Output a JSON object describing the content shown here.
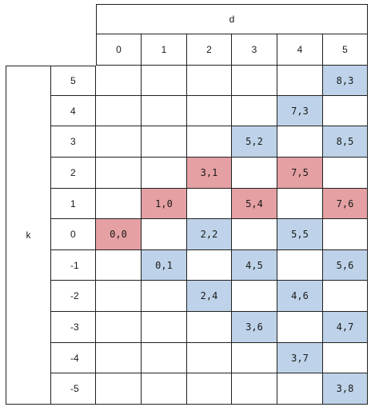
{
  "header": {
    "d_label": "d",
    "k_label": "k"
  },
  "d_values": [
    "0",
    "1",
    "2",
    "3",
    "4",
    "5"
  ],
  "k_values": [
    "5",
    "4",
    "3",
    "2",
    "1",
    "0",
    "-1",
    "-2",
    "-3",
    "-4",
    "-5"
  ],
  "colors": {
    "border": "#222222",
    "red": "#e5a0a3",
    "blue": "#bed3e9"
  },
  "cells": [
    {
      "k": "5",
      "d": "5",
      "text": "8,3",
      "color": "blue"
    },
    {
      "k": "4",
      "d": "4",
      "text": "7,3",
      "color": "blue"
    },
    {
      "k": "3",
      "d": "3",
      "text": "5,2",
      "color": "blue"
    },
    {
      "k": "3",
      "d": "5",
      "text": "8,5",
      "color": "blue"
    },
    {
      "k": "2",
      "d": "2",
      "text": "3,1",
      "color": "red"
    },
    {
      "k": "2",
      "d": "4",
      "text": "7,5",
      "color": "red"
    },
    {
      "k": "1",
      "d": "1",
      "text": "1,0",
      "color": "red"
    },
    {
      "k": "1",
      "d": "3",
      "text": "5,4",
      "color": "red"
    },
    {
      "k": "1",
      "d": "5",
      "text": "7,6",
      "color": "red"
    },
    {
      "k": "0",
      "d": "0",
      "text": "0,0",
      "color": "red"
    },
    {
      "k": "0",
      "d": "2",
      "text": "2,2",
      "color": "blue"
    },
    {
      "k": "0",
      "d": "4",
      "text": "5,5",
      "color": "blue"
    },
    {
      "k": "-1",
      "d": "1",
      "text": "0,1",
      "color": "blue"
    },
    {
      "k": "-1",
      "d": "3",
      "text": "4,5",
      "color": "blue"
    },
    {
      "k": "-1",
      "d": "5",
      "text": "5,6",
      "color": "blue"
    },
    {
      "k": "-2",
      "d": "2",
      "text": "2,4",
      "color": "blue"
    },
    {
      "k": "-2",
      "d": "4",
      "text": "4,6",
      "color": "blue"
    },
    {
      "k": "-3",
      "d": "3",
      "text": "3,6",
      "color": "blue"
    },
    {
      "k": "-3",
      "d": "5",
      "text": "4,7",
      "color": "blue"
    },
    {
      "k": "-4",
      "d": "4",
      "text": "3,7",
      "color": "blue"
    },
    {
      "k": "-5",
      "d": "5",
      "text": "3,8",
      "color": "blue"
    }
  ]
}
